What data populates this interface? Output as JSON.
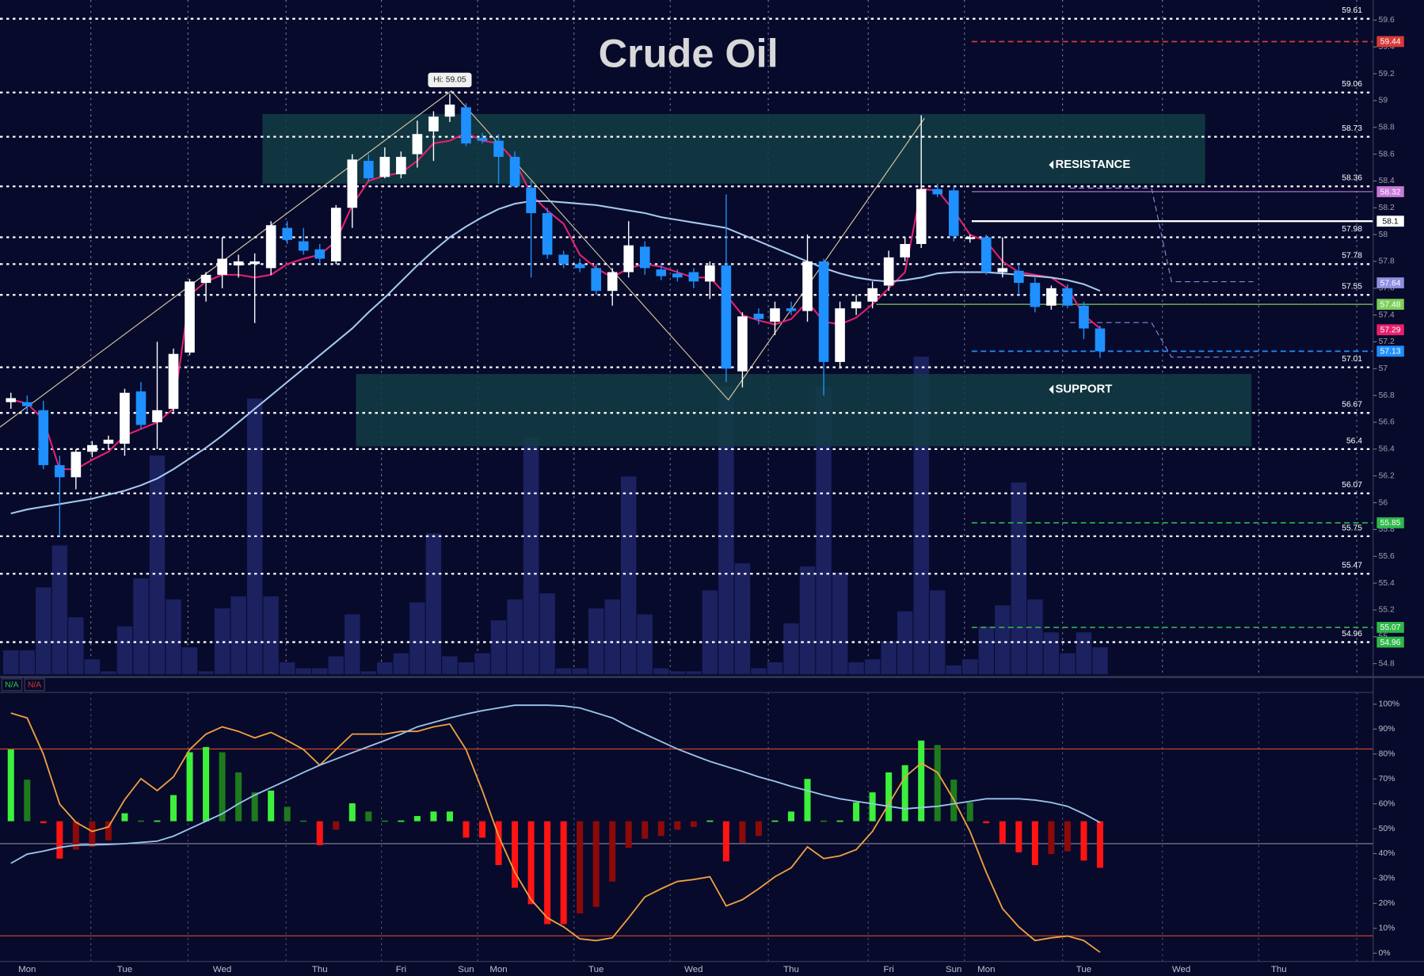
{
  "chart_data": [
    {
      "type": "candlestick",
      "title": "Crude Oil",
      "categories": [
        null,
        "Mon",
        null,
        null,
        null,
        null,
        null,
        "Tue",
        null,
        null,
        null,
        null,
        null,
        "Wed",
        null,
        null,
        null,
        null,
        null,
        "Thu",
        null,
        null,
        null,
        null,
        "Fri",
        null,
        null,
        null,
        "Sun",
        null,
        "Mon",
        null,
        null,
        null,
        null,
        null,
        "Tue",
        null,
        null,
        null,
        null,
        null,
        "Wed",
        null,
        null,
        null,
        null,
        null,
        "Thu",
        null,
        null,
        null,
        null,
        null,
        "Fri",
        null,
        null,
        null,
        "Sun",
        null,
        "Mon",
        null,
        null,
        null,
        null,
        null,
        "Tue",
        null,
        null,
        null,
        null,
        null,
        "Wed",
        null,
        null,
        null,
        null,
        null,
        "Thu"
      ],
      "open": [
        56.75,
        56.75,
        56.69,
        56.28,
        56.19,
        56.38,
        56.44,
        56.44,
        56.83,
        56.6,
        56.7,
        57.12,
        57.64,
        57.7,
        57.77,
        57.78,
        57.75,
        58.05,
        57.95,
        57.89,
        57.8,
        58.2,
        58.55,
        58.43,
        58.45,
        58.6,
        58.77,
        58.88,
        58.95,
        58.72,
        58.7,
        58.58,
        58.35,
        58.16,
        57.85,
        57.78,
        57.75,
        57.58,
        57.72,
        57.91,
        57.74,
        57.71,
        57.72,
        57.65,
        57.77,
        56.98,
        57.41,
        57.35,
        57.45,
        57.43,
        57.8,
        57.05,
        57.45,
        57.5,
        57.62,
        57.83,
        57.93,
        58.34,
        58.33,
        57.97,
        57.98,
        57.72,
        57.73,
        57.64,
        57.47,
        57.6,
        57.47,
        57.3,
        null,
        null,
        null,
        null,
        null,
        null,
        null,
        null,
        null,
        null,
        null
      ],
      "high": [
        56.82,
        56.8,
        56.76,
        56.35,
        56.4,
        56.46,
        56.5,
        56.85,
        56.9,
        57.2,
        57.15,
        57.67,
        57.72,
        57.98,
        57.85,
        57.86,
        58.1,
        58.1,
        58.05,
        57.93,
        58.22,
        58.6,
        58.6,
        58.65,
        58.62,
        58.85,
        58.92,
        59.05,
        58.98,
        58.76,
        58.75,
        58.62,
        58.4,
        58.2,
        57.88,
        57.82,
        57.78,
        57.75,
        58.1,
        57.95,
        57.78,
        57.74,
        57.75,
        57.8,
        58.3,
        57.42,
        57.45,
        57.5,
        57.5,
        58.0,
        57.82,
        57.5,
        57.55,
        57.65,
        57.88,
        57.98,
        58.89,
        58.38,
        58.36,
        58.0,
        58.0,
        57.98,
        57.78,
        57.68,
        57.62,
        57.63,
        57.5,
        57.32,
        null,
        null,
        null,
        null,
        null,
        null,
        null,
        null,
        null,
        null,
        null
      ],
      "low": [
        56.7,
        56.68,
        56.25,
        55.75,
        56.1,
        56.34,
        56.4,
        56.35,
        56.55,
        56.4,
        56.68,
        57.1,
        57.5,
        57.6,
        57.68,
        57.34,
        57.7,
        57.93,
        57.85,
        57.78,
        57.78,
        58.05,
        58.4,
        58.42,
        58.42,
        58.5,
        58.55,
        58.84,
        58.66,
        58.68,
        58.38,
        58.35,
        57.68,
        57.82,
        57.75,
        57.72,
        57.55,
        57.47,
        57.68,
        57.7,
        57.66,
        57.65,
        57.6,
        57.52,
        56.9,
        56.86,
        57.33,
        57.25,
        57.4,
        57.35,
        56.8,
        57.0,
        57.4,
        57.45,
        57.58,
        57.8,
        57.9,
        58.28,
        57.95,
        57.94,
        57.7,
        57.68,
        57.55,
        57.42,
        57.44,
        57.45,
        57.22,
        57.08,
        null,
        null,
        null,
        null,
        null,
        null,
        null,
        null,
        null,
        null,
        null
      ],
      "close": [
        56.78,
        56.72,
        56.28,
        56.19,
        56.38,
        56.43,
        56.47,
        56.82,
        56.58,
        56.69,
        57.11,
        57.65,
        57.7,
        57.82,
        57.8,
        57.8,
        58.07,
        57.96,
        57.88,
        57.82,
        58.2,
        58.56,
        58.42,
        58.58,
        58.58,
        58.75,
        58.88,
        58.97,
        58.68,
        58.7,
        58.58,
        58.36,
        58.16,
        57.85,
        57.78,
        57.75,
        57.58,
        57.72,
        57.92,
        57.75,
        57.69,
        57.68,
        57.65,
        57.77,
        57.0,
        57.39,
        57.37,
        57.45,
        57.43,
        57.8,
        57.05,
        57.45,
        57.5,
        57.6,
        57.83,
        57.93,
        58.34,
        58.3,
        57.99,
        57.98,
        57.72,
        57.75,
        57.64,
        57.46,
        57.6,
        57.47,
        57.3,
        57.13,
        null,
        null,
        null,
        null,
        null,
        null,
        null,
        null,
        null,
        null,
        null
      ],
      "up_color": "#ffffff",
      "down_color": "#1e90ff",
      "series": [
        {
          "color": "#e8206e",
          "values": [
            56.77,
            56.74,
            56.62,
            56.25,
            56.25,
            56.32,
            56.38,
            56.5,
            56.55,
            56.6,
            56.7,
            57.55,
            57.65,
            57.7,
            57.7,
            57.68,
            57.7,
            57.78,
            57.82,
            57.85,
            57.95,
            58.22,
            58.4,
            58.44,
            58.46,
            58.55,
            58.68,
            58.7,
            58.76,
            58.7,
            58.68,
            58.55,
            58.3,
            58.18,
            58.08,
            57.85,
            57.75,
            57.68,
            57.75,
            57.78,
            57.76,
            57.72,
            57.68,
            57.68,
            57.55,
            57.4,
            57.36,
            57.33,
            57.37,
            57.5,
            57.35,
            57.33,
            57.38,
            57.48,
            57.6,
            57.72,
            58.34,
            58.33,
            58.18,
            58.0,
            57.95,
            57.8,
            57.72,
            57.7,
            57.68,
            57.6,
            57.4,
            57.3,
            null,
            null,
            null,
            null,
            null,
            null,
            null,
            null,
            null,
            null,
            null
          ]
        },
        {
          "color": "#a6c8ee",
          "values": [
            55.92,
            55.95,
            55.97,
            55.99,
            56.01,
            56.03,
            56.06,
            56.09,
            56.13,
            56.18,
            56.25,
            56.33,
            56.41,
            56.5,
            56.6,
            56.7,
            56.8,
            56.9,
            57.0,
            57.1,
            57.2,
            57.3,
            57.42,
            57.53,
            57.65,
            57.77,
            57.88,
            57.98,
            58.06,
            58.13,
            58.19,
            58.23,
            58.25,
            58.25,
            58.24,
            58.23,
            58.22,
            58.2,
            58.18,
            58.16,
            58.13,
            58.11,
            58.09,
            58.07,
            58.05,
            58.0,
            57.95,
            57.9,
            57.85,
            57.8,
            57.75,
            57.71,
            57.68,
            57.66,
            57.65,
            57.66,
            57.68,
            57.71,
            57.72,
            57.72,
            57.72,
            57.71,
            57.7,
            57.69,
            57.68,
            57.66,
            57.63,
            57.58,
            null,
            null,
            null,
            null,
            null,
            null,
            null,
            null,
            null,
            null,
            null
          ]
        }
      ],
      "volume": {
        "color": "#1c2160",
        "ylim": [
          0,
          225
        ],
        "values": [
          8,
          8,
          29,
          43,
          19,
          5,
          1,
          16,
          32,
          73,
          25,
          9,
          1,
          22,
          26,
          92,
          26,
          4,
          2,
          2,
          6,
          20,
          1,
          4,
          7,
          24,
          47,
          6,
          4,
          7,
          18,
          25,
          79,
          27,
          2,
          2,
          22,
          25,
          66,
          20,
          2,
          1,
          1,
          28,
          96,
          37,
          2,
          4,
          17,
          36,
          96,
          34,
          4,
          5,
          11,
          21,
          106,
          28,
          3,
          5,
          16,
          23,
          64,
          25,
          14,
          7,
          14,
          9,
          null,
          null,
          null,
          null,
          null,
          null,
          null,
          null,
          null,
          null,
          null
        ]
      },
      "ylim": [
        54.72,
        59.75
      ],
      "yticks": [
        59.6,
        59.4,
        59.2,
        59,
        58.8,
        58.6,
        58.4,
        58.2,
        58,
        57.8,
        57.6,
        57.4,
        57.2,
        57,
        56.8,
        56.6,
        56.4,
        56.2,
        56,
        55.8,
        55.6,
        55.4,
        55.2,
        55,
        54.8
      ],
      "levels": [
        59.61,
        59.06,
        58.73,
        58.36,
        57.98,
        57.78,
        57.55,
        57.01,
        56.67,
        56.4,
        56.07,
        55.75,
        55.47,
        54.96
      ],
      "tags": [
        {
          "value": 59.44,
          "color": "#d83a3a",
          "line": "dashed"
        },
        {
          "value": 58.32,
          "color": "#c77ad8",
          "line": "solid"
        },
        {
          "value": 58.1,
          "color": "#ffffff",
          "line": "solid"
        },
        {
          "value": 57.64,
          "color": "#8f8fe0",
          "line": null
        },
        {
          "value": 57.48,
          "color": "#7ccf5a",
          "line": "solid"
        },
        {
          "value": 57.29,
          "color": "#e8206e",
          "line": null
        },
        {
          "value": 57.13,
          "color": "#1e90ff",
          "line": "dashed"
        },
        {
          "value": 55.85,
          "color": "#2fb84a",
          "line": "dashed"
        },
        {
          "value": 55.07,
          "color": "#2fb84a",
          "line": "dashed"
        },
        {
          "value": 54.96,
          "color": "#2fb84a",
          "line": null
        }
      ],
      "zones": [
        {
          "label": "RESISTANCE",
          "from": 58.38,
          "to": 58.9,
          "color": "#123d45"
        },
        {
          "label": "SUPPORT",
          "from": 56.42,
          "to": 56.96,
          "color": "#123d45"
        }
      ],
      "annotations": [
        "Hi: 59.05"
      ]
    },
    {
      "type": "oscillator",
      "legend": [
        {
          "label": "N/A",
          "color": "#2ecc40"
        },
        {
          "label": "N/A",
          "color": "#e03030"
        }
      ],
      "ylim": [
        -3.3,
        104.7
      ],
      "yticks": [
        {
          "value": 100,
          "label": "100%"
        },
        {
          "value": 90,
          "label": "90%"
        },
        {
          "value": 80,
          "label": "80%"
        },
        {
          "value": 70,
          "label": "70%"
        },
        {
          "value": 60,
          "label": "60%"
        },
        {
          "value": 50,
          "label": "50%"
        },
        {
          "value": 40,
          "label": "40%"
        },
        {
          "value": 30,
          "label": "30%"
        },
        {
          "value": 20,
          "label": "20%"
        },
        {
          "value": 10,
          "label": "10%"
        },
        {
          "value": 0,
          "label": "0%"
        }
      ],
      "levels": [
        {
          "value": 82,
          "color": "#d84a2a"
        },
        {
          "value": 7,
          "color": "#d84a2a"
        },
        {
          "value": 44,
          "color": "#8a8a9a"
        }
      ],
      "histogram_base": 53,
      "histogram_colors": [
        "#3cf03c",
        "#1d7a1d",
        "#ff1414",
        "#8c0a0a"
      ],
      "histogram": [
        81.8,
        69.7,
        52.2,
        38,
        41.6,
        42.7,
        45.3,
        56.2,
        53.3,
        53.3,
        63.5,
        80.7,
        82.8,
        80.7,
        72.6,
        64.6,
        65.3,
        58.8,
        53.3,
        43.4,
        49.6,
        60.2,
        56.9,
        53.3,
        53.3,
        55.1,
        56.9,
        56.9,
        46.4,
        46.4,
        35.4,
        26.3,
        19.7,
        11.7,
        11.7,
        16,
        18.6,
        28.8,
        42.3,
        46,
        47.1,
        49.6,
        50.7,
        53.3,
        36.9,
        44.2,
        47.1,
        53.3,
        56.9,
        70,
        53.3,
        53.3,
        60.6,
        64.6,
        72.6,
        75.5,
        85.4,
        83.6,
        69.7,
        60.6,
        52.2,
        44.2,
        40.5,
        35.4,
        39.8,
        40.9,
        37.2,
        34.3,
        null,
        null,
        null,
        null,
        null,
        null,
        null,
        null,
        null,
        null,
        null
      ],
      "series": [
        {
          "color": "#f0a040",
          "values": [
            96.4,
            94.5,
            79.9,
            59.9,
            52.6,
            48.9,
            50.7,
            61.7,
            70.1,
            65.3,
            70.8,
            81.8,
            88,
            90.9,
            89.1,
            86.5,
            88.7,
            85.4,
            81.8,
            75.5,
            81.8,
            88,
            88,
            88,
            89.1,
            89.1,
            90.9,
            92,
            81.8,
            65.3,
            47.1,
            32.5,
            21.5,
            14.2,
            10.6,
            5.8,
            5.1,
            6.2,
            14.2,
            22.6,
            25.9,
            28.8,
            29.6,
            30.7,
            19,
            21.5,
            25.9,
            30.7,
            34.3,
            42.7,
            38,
            39.1,
            41.6,
            48.9,
            59.9,
            70.8,
            76.3,
            72.6,
            61.7,
            48.9,
            32.5,
            17.9,
            10.6,
            5.1,
            6.2,
            6.9,
            5.1,
            0.4,
            null,
            null,
            null,
            null,
            null,
            null,
            null,
            null,
            null,
            null,
            null
          ]
        },
        {
          "color": "#9cc4ec",
          "values": [
            36.1,
            39.8,
            41,
            42.5,
            43.4,
            43.5,
            43.7,
            44,
            44.5,
            45,
            47,
            50,
            53,
            56,
            60,
            63.5,
            66.5,
            69.5,
            72.6,
            75.5,
            78,
            80.5,
            83,
            85.4,
            88,
            90.9,
            92.7,
            94.5,
            96,
            97.4,
            98.5,
            99.6,
            99.6,
            99.6,
            99.3,
            98.5,
            96.5,
            94.5,
            91,
            88,
            85,
            82,
            79.5,
            77,
            75,
            73,
            70.8,
            69,
            67,
            65.3,
            63.5,
            62,
            61,
            60,
            59,
            58,
            58.5,
            59,
            60,
            61,
            62,
            62,
            62,
            61.5,
            60.5,
            59,
            56,
            52.5,
            null,
            null,
            null,
            null,
            null,
            null,
            null,
            null,
            null,
            null,
            null
          ]
        }
      ]
    }
  ]
}
